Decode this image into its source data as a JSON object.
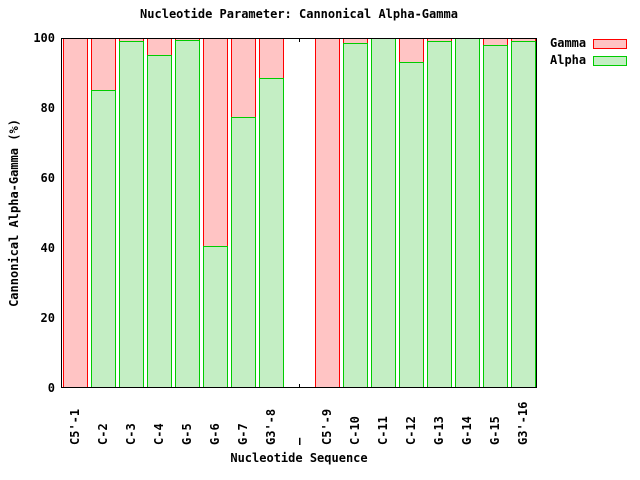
{
  "chart_data": {
    "type": "bar",
    "bar_mode": "overlay",
    "title": "Nucleotide Parameter: Cannonical Alpha-Gamma",
    "xlabel": "Nucleotide Sequence",
    "ylabel": "Cannonical Alpha-Gamma (%)",
    "ylim": [
      0,
      100
    ],
    "yticks": [
      0,
      20,
      40,
      60,
      80,
      100
    ],
    "grid": false,
    "legend_position": "top-right-outside",
    "background": "#ffffff",
    "axis_color": "#000000",
    "categories": [
      "C5'-1",
      "C-2",
      "C-3",
      "C-4",
      "G-5",
      "G-6",
      "G-7",
      "G3'-8",
      "—",
      "C5'-9",
      "C-10",
      "C-11",
      "C-12",
      "G-13",
      "G-14",
      "G-15",
      "G3'-16"
    ],
    "series": [
      {
        "name": "Gamma",
        "fill": "#ffc4c4",
        "border": "#ff0000",
        "values": [
          100,
          100,
          100,
          100,
          100,
          100,
          100,
          100,
          null,
          100,
          100,
          100,
          100,
          100,
          100,
          100,
          100
        ]
      },
      {
        "name": "Alpha",
        "fill": "#c4eec4",
        "border": "#00cc00",
        "values": [
          0,
          85,
          99,
          95,
          99.5,
          40.5,
          77.5,
          88.5,
          null,
          0,
          98.5,
          100,
          93,
          99,
          100,
          98,
          99
        ]
      }
    ]
  }
}
